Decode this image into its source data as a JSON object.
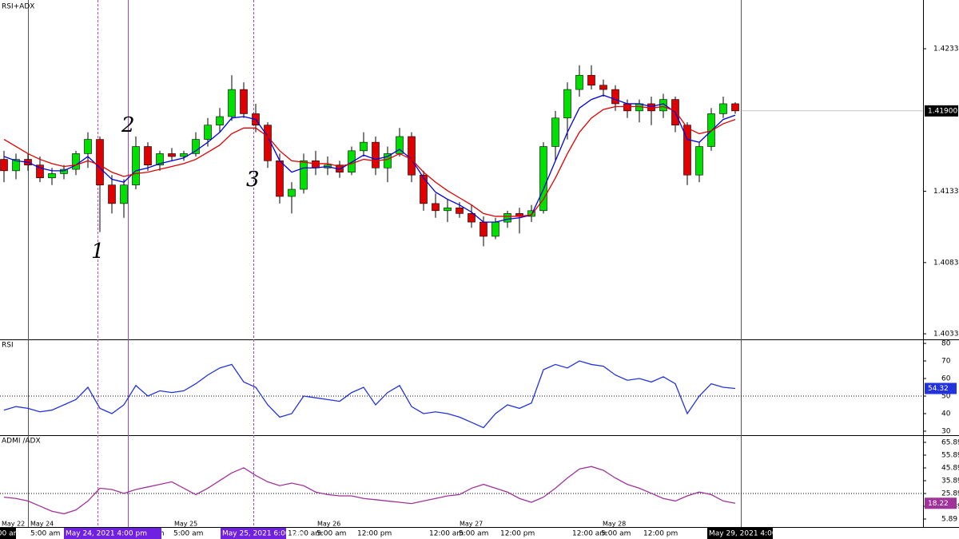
{
  "chart_data": [
    {
      "type": "candlestick",
      "title": "RSI+ADX",
      "open": [
        1.4156,
        1.4148,
        1.4156,
        1.4152,
        1.4143,
        1.4146,
        1.4149,
        1.416,
        1.417,
        1.4138,
        1.4125,
        1.4138,
        1.4165,
        1.4152,
        1.416,
        1.4158,
        1.416,
        1.417,
        1.418,
        1.4186,
        1.4205,
        1.4188,
        1.418,
        1.4155,
        1.413,
        1.4135,
        1.4155,
        1.415,
        1.4152,
        1.4147,
        1.4162,
        1.4168,
        1.415,
        1.416,
        1.4172,
        1.4145,
        1.4125,
        1.412,
        1.4122,
        1.4118,
        1.4112,
        1.4102,
        1.4112,
        1.4118,
        1.4116,
        1.412,
        1.4165,
        1.4185,
        1.4205,
        1.4215,
        1.4208,
        1.4205,
        1.4195,
        1.419,
        1.4195,
        1.419,
        1.4198,
        1.418,
        1.4145,
        1.4165,
        1.4188,
        1.4195
      ],
      "high": [
        1.4162,
        1.416,
        1.416,
        1.4158,
        1.415,
        1.4152,
        1.4162,
        1.4175,
        1.4172,
        1.4145,
        1.4142,
        1.4172,
        1.4168,
        1.4162,
        1.4164,
        1.4162,
        1.4175,
        1.4185,
        1.4192,
        1.4215,
        1.421,
        1.4195,
        1.4182,
        1.416,
        1.414,
        1.416,
        1.4162,
        1.4158,
        1.4155,
        1.4165,
        1.4175,
        1.4172,
        1.4165,
        1.4178,
        1.4175,
        1.4148,
        1.4132,
        1.4128,
        1.4126,
        1.4124,
        1.4116,
        1.4115,
        1.412,
        1.4122,
        1.4124,
        1.4168,
        1.419,
        1.421,
        1.4222,
        1.4222,
        1.4212,
        1.4208,
        1.4198,
        1.4198,
        1.42,
        1.4202,
        1.42,
        1.4182,
        1.4168,
        1.4192,
        1.42,
        1.4196
      ],
      "low": [
        1.414,
        1.4142,
        1.4148,
        1.414,
        1.4138,
        1.4142,
        1.4145,
        1.415,
        1.4105,
        1.4118,
        1.4115,
        1.4135,
        1.4148,
        1.4148,
        1.4155,
        1.4155,
        1.4158,
        1.4165,
        1.4175,
        1.4183,
        1.4185,
        1.4175,
        1.415,
        1.4125,
        1.4118,
        1.4132,
        1.4145,
        1.4145,
        1.4143,
        1.4145,
        1.4158,
        1.4145,
        1.414,
        1.4158,
        1.414,
        1.412,
        1.4115,
        1.4112,
        1.4115,
        1.4108,
        1.4095,
        1.41,
        1.4108,
        1.4104,
        1.4112,
        1.4118,
        1.4155,
        1.417,
        1.42,
        1.4205,
        1.42,
        1.419,
        1.4185,
        1.4182,
        1.418,
        1.4185,
        1.4175,
        1.4138,
        1.414,
        1.4162,
        1.4185,
        1.4188
      ],
      "close": [
        1.4148,
        1.4156,
        1.4152,
        1.4143,
        1.4146,
        1.4149,
        1.416,
        1.417,
        1.4138,
        1.4125,
        1.4138,
        1.4165,
        1.4152,
        1.416,
        1.4158,
        1.416,
        1.417,
        1.418,
        1.4186,
        1.4205,
        1.4188,
        1.418,
        1.4155,
        1.413,
        1.4135,
        1.4155,
        1.415,
        1.4152,
        1.4147,
        1.4162,
        1.4168,
        1.415,
        1.416,
        1.4172,
        1.4145,
        1.4125,
        1.412,
        1.4122,
        1.4118,
        1.4112,
        1.4102,
        1.4112,
        1.4118,
        1.4116,
        1.412,
        1.4165,
        1.4185,
        1.4205,
        1.4215,
        1.4208,
        1.4205,
        1.4195,
        1.419,
        1.4195,
        1.419,
        1.4198,
        1.418,
        1.4145,
        1.4165,
        1.4188,
        1.4195,
        1.419
      ],
      "up_color": "#00e000",
      "down_color": "#e00000",
      "series": [
        {
          "color": "#0000e0",
          "values": [
            1.4158,
            1.4155,
            1.4154,
            1.415,
            1.4148,
            1.4148,
            1.4152,
            1.4158,
            1.415,
            1.4142,
            1.414,
            1.4148,
            1.415,
            1.4153,
            1.4155,
            1.4157,
            1.4162,
            1.4168,
            1.4175,
            1.4185,
            1.4186,
            1.4184,
            1.4172,
            1.4155,
            1.4147,
            1.415,
            1.415,
            1.4151,
            1.4149,
            1.4154,
            1.4159,
            1.4156,
            1.4158,
            1.4163,
            1.4156,
            1.4143,
            1.4133,
            1.4128,
            1.4124,
            1.4119,
            1.4112,
            1.4112,
            1.4114,
            1.4115,
            1.4117,
            1.4135,
            1.4155,
            1.4175,
            1.4192,
            1.4198,
            1.4201,
            1.4198,
            1.4195,
            1.4195,
            1.4193,
            1.4195,
            1.4189,
            1.417,
            1.4168,
            1.4176,
            1.4184,
            1.4187
          ]
        },
        {
          "color": "#e00000",
          "values": [
            1.417,
            1.4165,
            1.416,
            1.4156,
            1.4153,
            1.4151,
            1.4152,
            1.4155,
            1.4152,
            1.4147,
            1.4144,
            1.4146,
            1.4147,
            1.4149,
            1.4151,
            1.4153,
            1.4156,
            1.4161,
            1.4166,
            1.4174,
            1.4178,
            1.4178,
            1.4172,
            1.4162,
            1.4155,
            1.4154,
            1.4153,
            1.4153,
            1.4151,
            1.4153,
            1.4156,
            1.4155,
            1.4156,
            1.416,
            1.4156,
            1.4147,
            1.414,
            1.4134,
            1.4129,
            1.4124,
            1.4118,
            1.4116,
            1.4116,
            1.4116,
            1.4117,
            1.4128,
            1.4143,
            1.416,
            1.4175,
            1.4185,
            1.4191,
            1.4193,
            1.4193,
            1.4193,
            1.4192,
            1.4193,
            1.419,
            1.4178,
            1.4174,
            1.4176,
            1.4181,
            1.4184
          ]
        }
      ],
      "last_price": 1.419,
      "last_price_label": "1.41900",
      "ylim": [
        1.40297,
        1.42678
      ],
      "yticks": [
        1.40336,
        1.40836,
        1.41336,
        1.42336
      ],
      "annotations": [
        "1",
        "2",
        "3"
      ]
    },
    {
      "type": "line",
      "title": "RSI",
      "color": "#2233dd",
      "values": [
        42,
        44,
        43,
        41,
        42,
        45,
        48,
        55,
        43,
        40,
        45,
        56,
        50,
        53,
        52,
        53,
        57,
        62,
        66,
        68,
        58,
        55,
        45,
        38,
        40,
        50,
        49,
        48,
        47,
        52,
        55,
        45,
        52,
        56,
        44,
        40,
        41,
        40,
        38,
        35,
        32,
        40,
        45,
        43,
        46,
        65,
        68,
        66,
        70,
        68,
        67,
        62,
        59,
        60,
        58,
        61,
        57,
        40,
        50,
        57,
        55,
        54.32
      ],
      "ylim": [
        27.7,
        82.3
      ],
      "yticks": [
        30,
        40,
        50,
        60,
        70,
        80
      ],
      "level": 50
    },
    {
      "type": "line",
      "title": "ADMI /ADX",
      "color": "#a0339a",
      "values": [
        23,
        22,
        20,
        16,
        12,
        10,
        13,
        20,
        30,
        29,
        26,
        29,
        31,
        33,
        35,
        30,
        25,
        30,
        36,
        42,
        46,
        40,
        35,
        32,
        34,
        32,
        27,
        25,
        24,
        24,
        22,
        21,
        20,
        19,
        18,
        20,
        22,
        24,
        25,
        30,
        33,
        30,
        27,
        22,
        19,
        23,
        30,
        38,
        45,
        47,
        44,
        38,
        33,
        30,
        26,
        22,
        20,
        24,
        27,
        25,
        20,
        18.22
      ],
      "ylim": [
        -0.36,
        71.5
      ],
      "yticks": [
        5.89,
        15.89,
        25.89,
        35.89,
        45.89,
        55.89,
        65.89
      ],
      "level": 25.89
    }
  ],
  "time_axis": {
    "day_labels": [
      "May 22",
      "May 24",
      "May 25",
      "May 26",
      "May 27",
      "May 28"
    ],
    "time_labels": [
      "5:00 am",
      "9:00 pm",
      "5:00 am",
      "12:00 am",
      "5:00 am",
      "12:00 pm",
      "12:00 am",
      "5:00 am",
      "12:00 pm",
      "12:00 am",
      "5:00 am",
      "12:00 pm"
    ],
    "cursor_labels": [
      "4:00 am",
      "May 24, 2021 4:00 pm",
      "May 25, 2021 6:00 pm",
      "May 29, 2021 4:00 am"
    ]
  }
}
